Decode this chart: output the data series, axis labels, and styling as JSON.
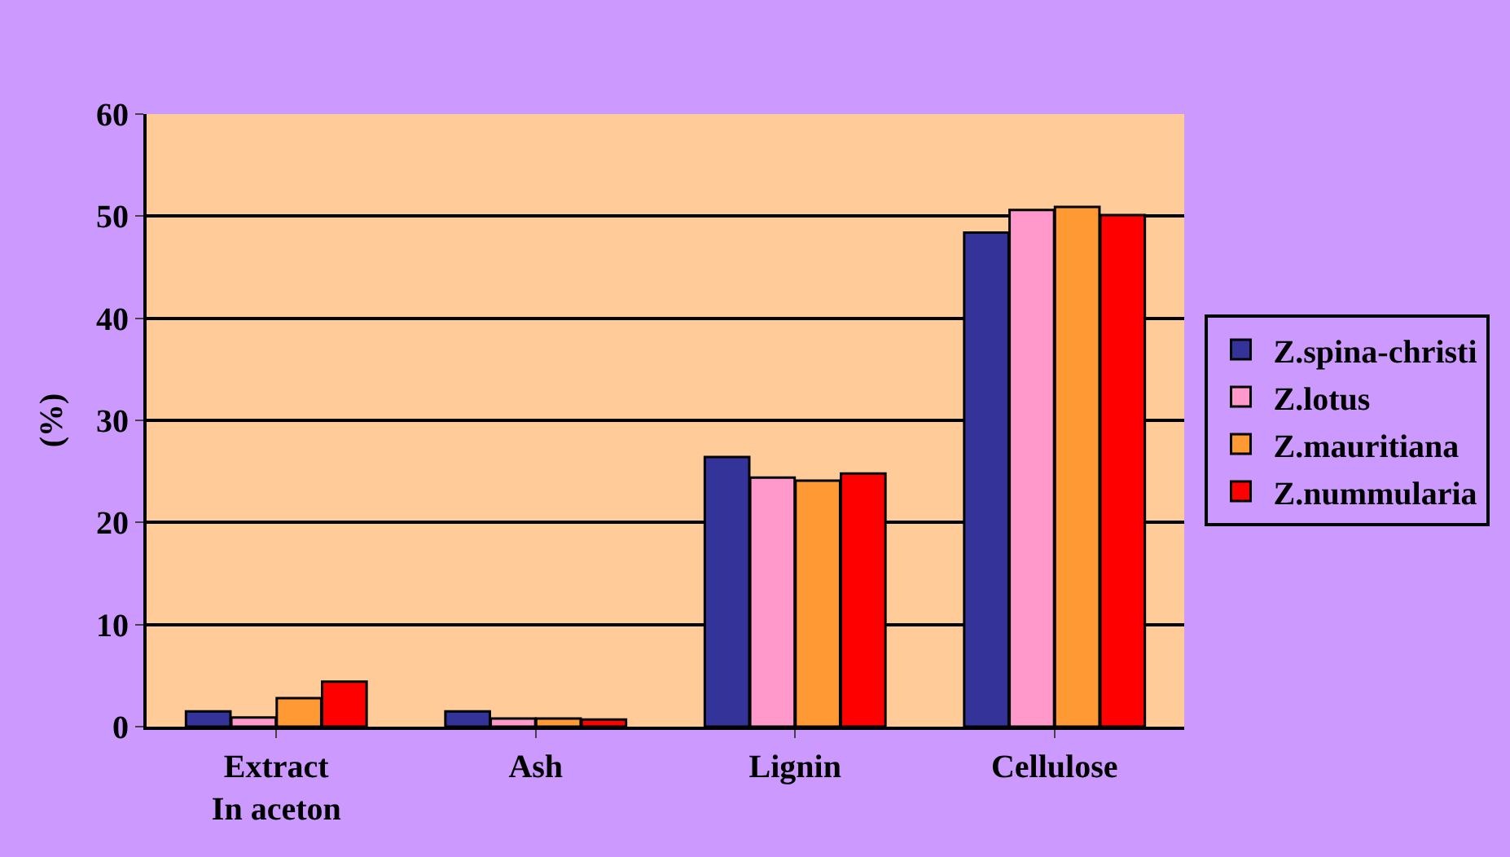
{
  "chart_data": {
    "type": "bar",
    "ylabel": "(%)",
    "categories": [
      "Extract\nIn aceton",
      "Ash",
      "Lignin",
      "Cellulose"
    ],
    "series": [
      {
        "name": "Z.spina-christi",
        "color": "#333399",
        "values": [
          1.5,
          1.5,
          26.4,
          48.4
        ]
      },
      {
        "name": "Z.lotus",
        "color": "#ff99cc",
        "values": [
          0.9,
          0.8,
          24.4,
          50.6
        ]
      },
      {
        "name": "Z.mauritiana",
        "color": "#ff9933",
        "values": [
          2.8,
          0.8,
          24.1,
          50.9
        ]
      },
      {
        "name": "Z.nummularia",
        "color": "#ff0000",
        "values": [
          4.4,
          0.7,
          24.8,
          50.1
        ]
      }
    ],
    "ylim": [
      0,
      60
    ],
    "yticks": [
      0,
      10,
      20,
      30,
      40,
      50,
      60
    ],
    "grid": "y",
    "legend": "right"
  }
}
